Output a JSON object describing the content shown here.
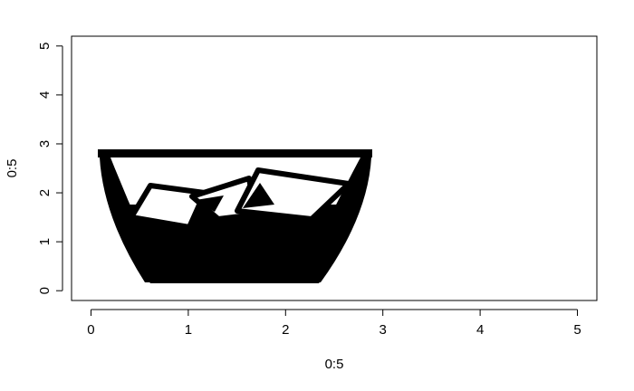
{
  "chart_data": {
    "type": "scatter",
    "title": "",
    "xlabel": "0:5",
    "ylabel": "0:5",
    "xlim": [
      -0.2,
      5.2
    ],
    "ylim": [
      -0.2,
      5.2
    ],
    "x_ticks": [
      0,
      1,
      2,
      3,
      4,
      5
    ],
    "y_ticks": [
      0,
      1,
      2,
      3,
      4,
      5
    ],
    "x_tick_labels": [
      "0",
      "1",
      "2",
      "3",
      "4",
      "5"
    ],
    "y_tick_labels": [
      "0",
      "1",
      "2",
      "3",
      "4",
      "5"
    ],
    "grid": false,
    "legend": "none",
    "annotations": [
      {
        "kind": "raster-image",
        "icon": "glass-with-ice-cubes-icon",
        "color": "#000000",
        "xleft": 0.1,
        "xright": 2.9,
        "ybottom": 0.1,
        "ytop": 2.9
      }
    ]
  }
}
